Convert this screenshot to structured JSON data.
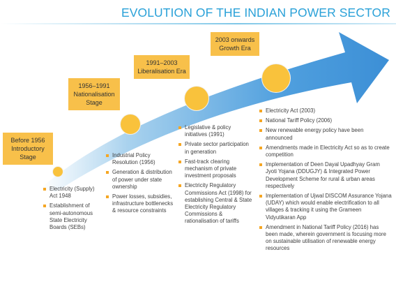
{
  "title": "EVOLUTION OF THE INDIAN POWER SECTOR",
  "colors": {
    "accent": "#2aa1d8",
    "era_box": "#f8c04a",
    "dot": "#f9c23c",
    "bullet": "#f5a623"
  },
  "eras": [
    {
      "line1": "Before 1956",
      "line2": "Introductory",
      "line3": "Stage"
    },
    {
      "line1": "1956–1991",
      "line2": "Nationalisation",
      "line3": "Stage"
    },
    {
      "line1": "1991–2003",
      "line2": "Liberalisation Era",
      "line3": ""
    },
    {
      "line1": "2003 onwards",
      "line2": "Growth Era",
      "line3": ""
    }
  ],
  "columns": [
    [
      "Electricity (Supply) Act 1948",
      "Establishment of semi-autonomous State Electricity Boards (SEBs)"
    ],
    [
      "Industrial Policy Resolution (1956)",
      "Generation & distribution of power under state ownership",
      "Power losses, subsidies, infrastructure bottlenecks & resource constraints"
    ],
    [
      "Legislative & policy initiatives (1991)",
      "Private sector participation in generation",
      "Fast-track clearing mechanism of private investment proposals",
      "Electricity Regulatory Commissions Act (1998) for establishing Central & State Electricity Regulatory Commissions & rationalisation of tariffs"
    ],
    [
      "Electricity Act (2003)",
      "National Tariff Policy (2006)",
      "New renewable energy policy have been announced",
      "Amendments made in Electricity Act so as to create competition",
      "Implementation of Deen Dayal Upadhyay Gram Jyoti Yojana (DDUGJY) & Integrated Power Development Scheme for rural & urban areas respectively",
      "Implementation of Ujwal DISCOM Assurance Yojana (UDAY) which would enable electrification to all villages & tracking it using the Grameen Vidyutikaran App",
      "Amendment in National Tariff Policy (2016) has been made, wherein government is focusing more on sustainable utilisation of renewable energy resources"
    ]
  ]
}
